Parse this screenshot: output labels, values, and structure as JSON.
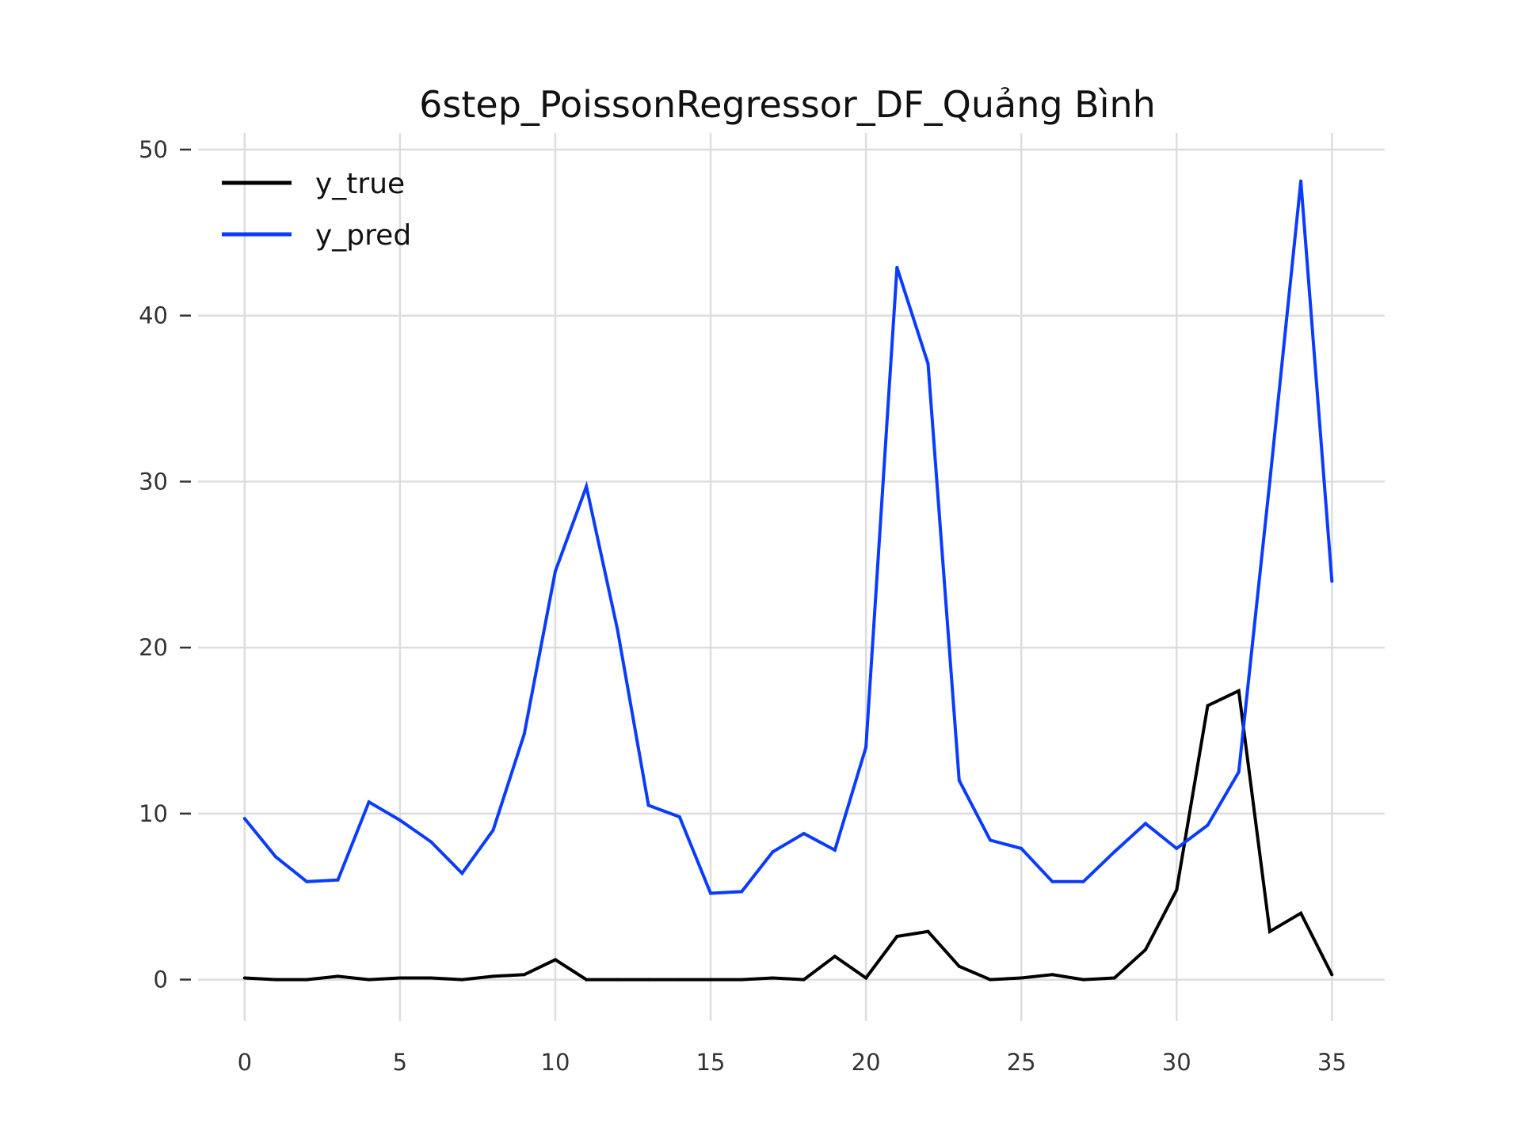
{
  "chart_data": {
    "type": "line",
    "title": "6step_PoissonRegressor_DF_Quảng Bình",
    "xlabel": "",
    "ylabel": "",
    "x": [
      0,
      1,
      2,
      3,
      4,
      5,
      6,
      7,
      8,
      9,
      10,
      11,
      12,
      13,
      14,
      15,
      16,
      17,
      18,
      19,
      20,
      21,
      22,
      23,
      24,
      25,
      26,
      27,
      28,
      29,
      30,
      31,
      32,
      33,
      34,
      35
    ],
    "xlim": [
      -1.5,
      36.7
    ],
    "ylim": [
      -2.5,
      51
    ],
    "x_ticks": [
      0,
      5,
      10,
      15,
      20,
      25,
      30,
      35
    ],
    "x_tick_labels": [
      "0",
      "5",
      "10",
      "15",
      "20",
      "25",
      "30",
      "35"
    ],
    "y_ticks": [
      0,
      10,
      20,
      30,
      40,
      50
    ],
    "y_tick_labels": [
      "0",
      "10",
      "20",
      "30",
      "40",
      "50"
    ],
    "grid": true,
    "legend_position": "top-left",
    "series": [
      {
        "name": "y_true",
        "color": "#000000",
        "values": [
          0.1,
          0,
          0,
          0.2,
          0,
          0.1,
          0.1,
          0,
          0.2,
          0.3,
          1.2,
          0,
          0,
          0,
          0,
          0,
          0,
          0.1,
          0,
          1.4,
          0.1,
          2.6,
          2.9,
          0.8,
          0,
          0.1,
          0.3,
          0,
          0.1,
          1.8,
          5.4,
          16.5,
          17.4,
          2.9,
          4.0,
          0.3
        ]
      },
      {
        "name": "y_pred",
        "color": "#0a3cff",
        "values": [
          9.7,
          7.4,
          5.9,
          6.0,
          10.7,
          9.6,
          8.3,
          6.4,
          9.0,
          14.8,
          24.6,
          29.7,
          21.1,
          10.5,
          9.8,
          5.2,
          5.3,
          7.7,
          8.8,
          7.8,
          14.0,
          42.9,
          37.1,
          12.0,
          8.4,
          7.9,
          5.9,
          5.9,
          7.7,
          9.4,
          7.9,
          9.3,
          12.5,
          30.0,
          48.1,
          24.0
        ]
      }
    ]
  }
}
